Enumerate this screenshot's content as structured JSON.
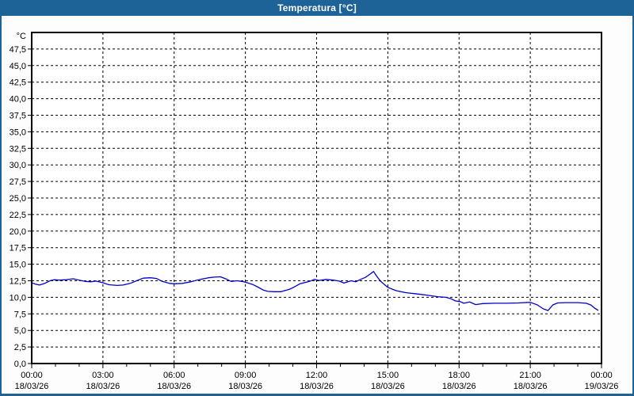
{
  "window": {
    "title": "Temperatura [°C]"
  },
  "colors": {
    "titlebar_bg": "#1E6397",
    "frame_border": "#1E6397",
    "background": "#FDFDFD",
    "plot_background": "#FFFFFF",
    "grid": "#000000",
    "axis": "#000000",
    "text": "#000000",
    "line": "#0000CC"
  },
  "chart_data": {
    "type": "line",
    "title": "Temperatura [°C]",
    "y_unit_label": "°C",
    "ylim": [
      0,
      50
    ],
    "y_tick_step": 2.5,
    "y_tick_labels": [
      "0,0",
      "2,5",
      "5,0",
      "7,5",
      "10,0",
      "12,5",
      "15,0",
      "17,5",
      "20,0",
      "22,5",
      "25,0",
      "27,5",
      "30,0",
      "32,5",
      "35,0",
      "37,5",
      "40,0",
      "42,5",
      "45,0",
      "47,5"
    ],
    "y_tick_values": [
      0,
      2.5,
      5,
      7.5,
      10,
      12.5,
      15,
      17.5,
      20,
      22.5,
      25,
      27.5,
      30,
      32.5,
      35,
      37.5,
      40,
      42.5,
      45,
      47.5
    ],
    "xlim_hours": [
      0,
      24
    ],
    "x_minor_tick_hours": 1,
    "x_major_ticks": [
      {
        "hour": 0,
        "time": "00:00",
        "date": "18/03/26"
      },
      {
        "hour": 3,
        "time": "03:00",
        "date": "18/03/26"
      },
      {
        "hour": 6,
        "time": "06:00",
        "date": "18/03/26"
      },
      {
        "hour": 9,
        "time": "09:00",
        "date": "18/03/26"
      },
      {
        "hour": 12,
        "time": "12:00",
        "date": "18/03/26"
      },
      {
        "hour": 15,
        "time": "15:00",
        "date": "18/03/26"
      },
      {
        "hour": 18,
        "time": "18:00",
        "date": "18/03/26"
      },
      {
        "hour": 21,
        "time": "21:00",
        "date": "18/03/26"
      },
      {
        "hour": 24,
        "time": "00:00",
        "date": "19/03/26"
      }
    ],
    "grid": "dashed",
    "legend": "none",
    "series": [
      {
        "name": "Temperatura",
        "color": "#0000CC",
        "points": [
          [
            0.0,
            12.2
          ],
          [
            0.15,
            12.0
          ],
          [
            0.33,
            11.85
          ],
          [
            0.55,
            12.1
          ],
          [
            0.8,
            12.55
          ],
          [
            0.95,
            12.65
          ],
          [
            1.15,
            12.6
          ],
          [
            1.45,
            12.65
          ],
          [
            1.75,
            12.8
          ],
          [
            2.0,
            12.6
          ],
          [
            2.25,
            12.4
          ],
          [
            2.5,
            12.35
          ],
          [
            2.7,
            12.45
          ],
          [
            3.0,
            12.2
          ],
          [
            3.25,
            11.9
          ],
          [
            3.6,
            11.8
          ],
          [
            3.85,
            11.85
          ],
          [
            4.15,
            12.1
          ],
          [
            4.45,
            12.55
          ],
          [
            4.7,
            12.9
          ],
          [
            5.0,
            12.95
          ],
          [
            5.25,
            12.85
          ],
          [
            5.5,
            12.4
          ],
          [
            5.8,
            12.1
          ],
          [
            6.0,
            12.05
          ],
          [
            6.35,
            12.1
          ],
          [
            6.7,
            12.35
          ],
          [
            7.1,
            12.7
          ],
          [
            7.45,
            12.95
          ],
          [
            7.7,
            13.05
          ],
          [
            7.95,
            13.1
          ],
          [
            8.2,
            12.75
          ],
          [
            8.4,
            12.4
          ],
          [
            8.65,
            12.5
          ],
          [
            8.85,
            12.4
          ],
          [
            9.0,
            12.3
          ],
          [
            9.3,
            11.95
          ],
          [
            9.5,
            11.6
          ],
          [
            9.75,
            11.1
          ],
          [
            9.95,
            10.9
          ],
          [
            10.2,
            10.85
          ],
          [
            10.5,
            10.85
          ],
          [
            10.85,
            11.2
          ],
          [
            11.0,
            11.45
          ],
          [
            11.3,
            12.05
          ],
          [
            11.7,
            12.4
          ],
          [
            11.9,
            12.7
          ],
          [
            12.1,
            12.55
          ],
          [
            12.4,
            12.7
          ],
          [
            12.7,
            12.6
          ],
          [
            12.95,
            12.45
          ],
          [
            13.15,
            12.15
          ],
          [
            13.45,
            12.5
          ],
          [
            13.65,
            12.35
          ],
          [
            13.85,
            12.7
          ],
          [
            14.05,
            13.0
          ],
          [
            14.25,
            13.5
          ],
          [
            14.4,
            13.9
          ],
          [
            14.55,
            13.1
          ],
          [
            14.7,
            12.4
          ],
          [
            15.0,
            11.5
          ],
          [
            15.35,
            11.0
          ],
          [
            15.75,
            10.7
          ],
          [
            16.25,
            10.5
          ],
          [
            16.7,
            10.3
          ],
          [
            17.1,
            10.1
          ],
          [
            17.45,
            10.0
          ],
          [
            17.65,
            9.8
          ],
          [
            17.85,
            9.45
          ],
          [
            18.05,
            9.35
          ],
          [
            18.2,
            9.1
          ],
          [
            18.45,
            9.3
          ],
          [
            18.7,
            8.9
          ],
          [
            19.0,
            9.05
          ],
          [
            19.5,
            9.1
          ],
          [
            20.0,
            9.1
          ],
          [
            20.5,
            9.15
          ],
          [
            21.0,
            9.25
          ],
          [
            21.3,
            8.85
          ],
          [
            21.55,
            8.25
          ],
          [
            21.75,
            8.0
          ],
          [
            21.95,
            8.85
          ],
          [
            22.15,
            9.15
          ],
          [
            22.5,
            9.2
          ],
          [
            23.0,
            9.2
          ],
          [
            23.35,
            9.1
          ],
          [
            23.55,
            8.85
          ],
          [
            23.7,
            8.4
          ],
          [
            23.85,
            8.05
          ]
        ]
      }
    ]
  }
}
